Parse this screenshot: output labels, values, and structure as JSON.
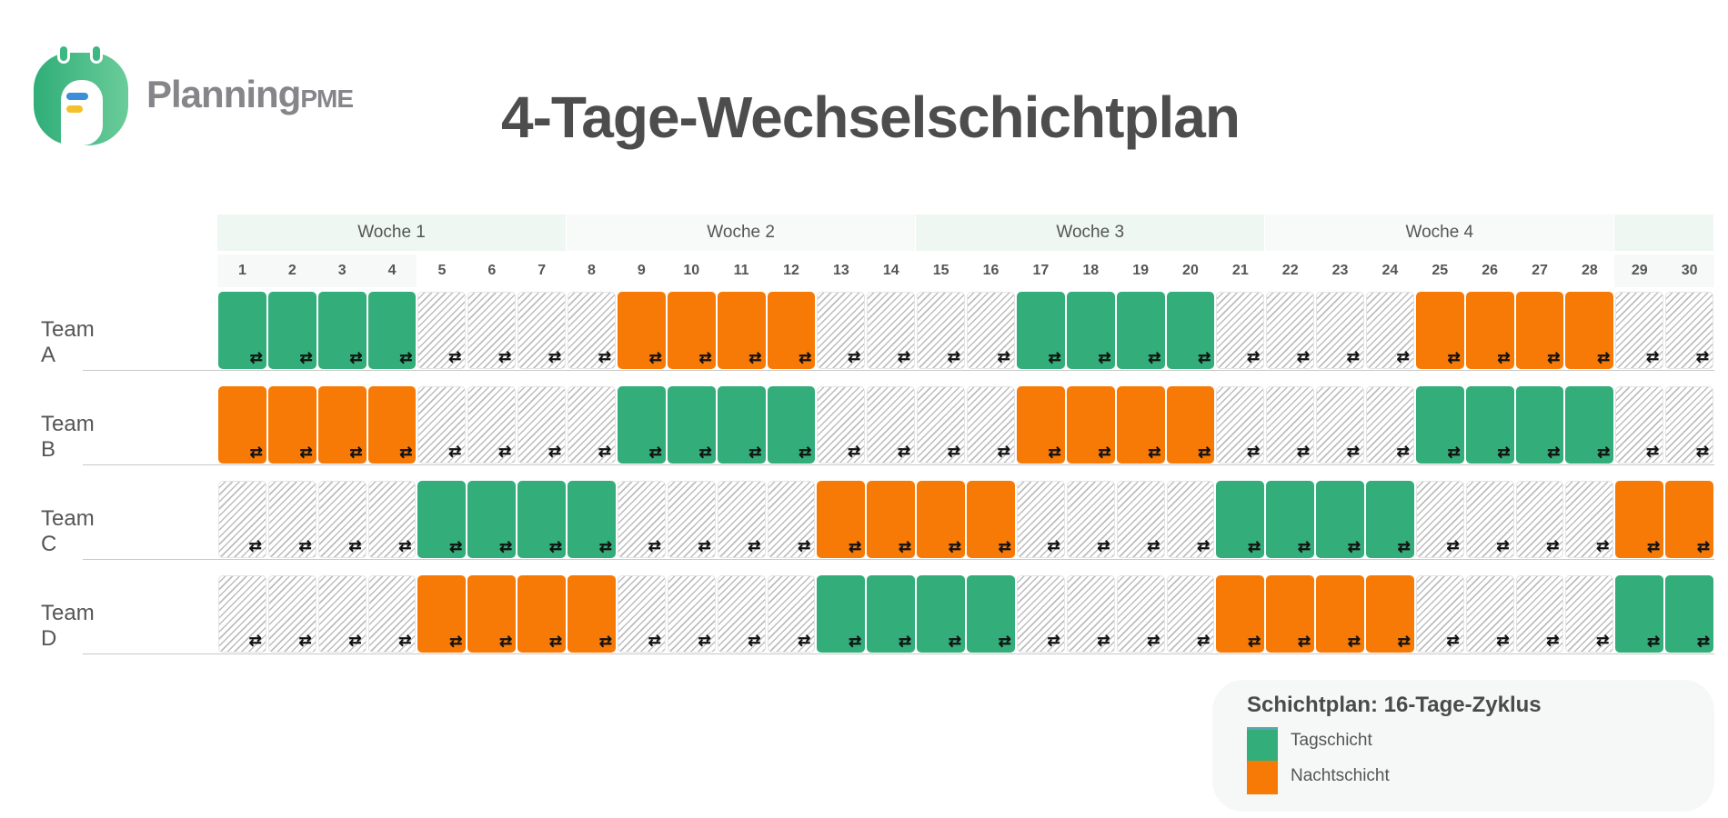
{
  "logo": {
    "name": "Planning",
    "suffix": "PME"
  },
  "title": "4-Tage-Wechselschichtplan",
  "colors": {
    "day": "#33ad7a",
    "night": "#f77a06",
    "week_odd": "#eef7f1",
    "week_even": "#f7faf8"
  },
  "weeks": [
    {
      "label": "Woche 1",
      "from": 1,
      "to": 7
    },
    {
      "label": "Woche 2",
      "from": 8,
      "to": 14
    },
    {
      "label": "Woche 3",
      "from": 15,
      "to": 21
    },
    {
      "label": "Woche 4",
      "from": 22,
      "to": 28
    },
    {
      "label": "",
      "from": 29,
      "to": 30
    }
  ],
  "days": [
    "1",
    "2",
    "3",
    "4",
    "5",
    "6",
    "7",
    "8",
    "9",
    "10",
    "11",
    "12",
    "13",
    "14",
    "15",
    "16",
    "17",
    "18",
    "19",
    "20",
    "21",
    "22",
    "23",
    "24",
    "25",
    "26",
    "27",
    "28",
    "29",
    "30"
  ],
  "cell_icon": "repeat-icon",
  "teams": [
    {
      "name": "Team A",
      "shifts": "DDDDOOOONNNNOOOODDDDOOOONNNNOO"
    },
    {
      "name": "Team B",
      "shifts": "NNNNOOOODDDDOOOONNNNOOOODDDDOO"
    },
    {
      "name": "Team C",
      "shifts": "OOOODDDDOOOONNNNOOOODDDDOOOONN"
    },
    {
      "name": "Team D",
      "shifts": "OOOONNNNOOOODDDDOOOONNNNOOOODD"
    }
  ],
  "legend": {
    "title": "Schichtplan: 16-Tage-Zyklus",
    "items": [
      {
        "label": "Tagschicht",
        "color": "#33ad7a"
      },
      {
        "label": "Nachtschicht",
        "color": "#f77a06"
      }
    ]
  }
}
